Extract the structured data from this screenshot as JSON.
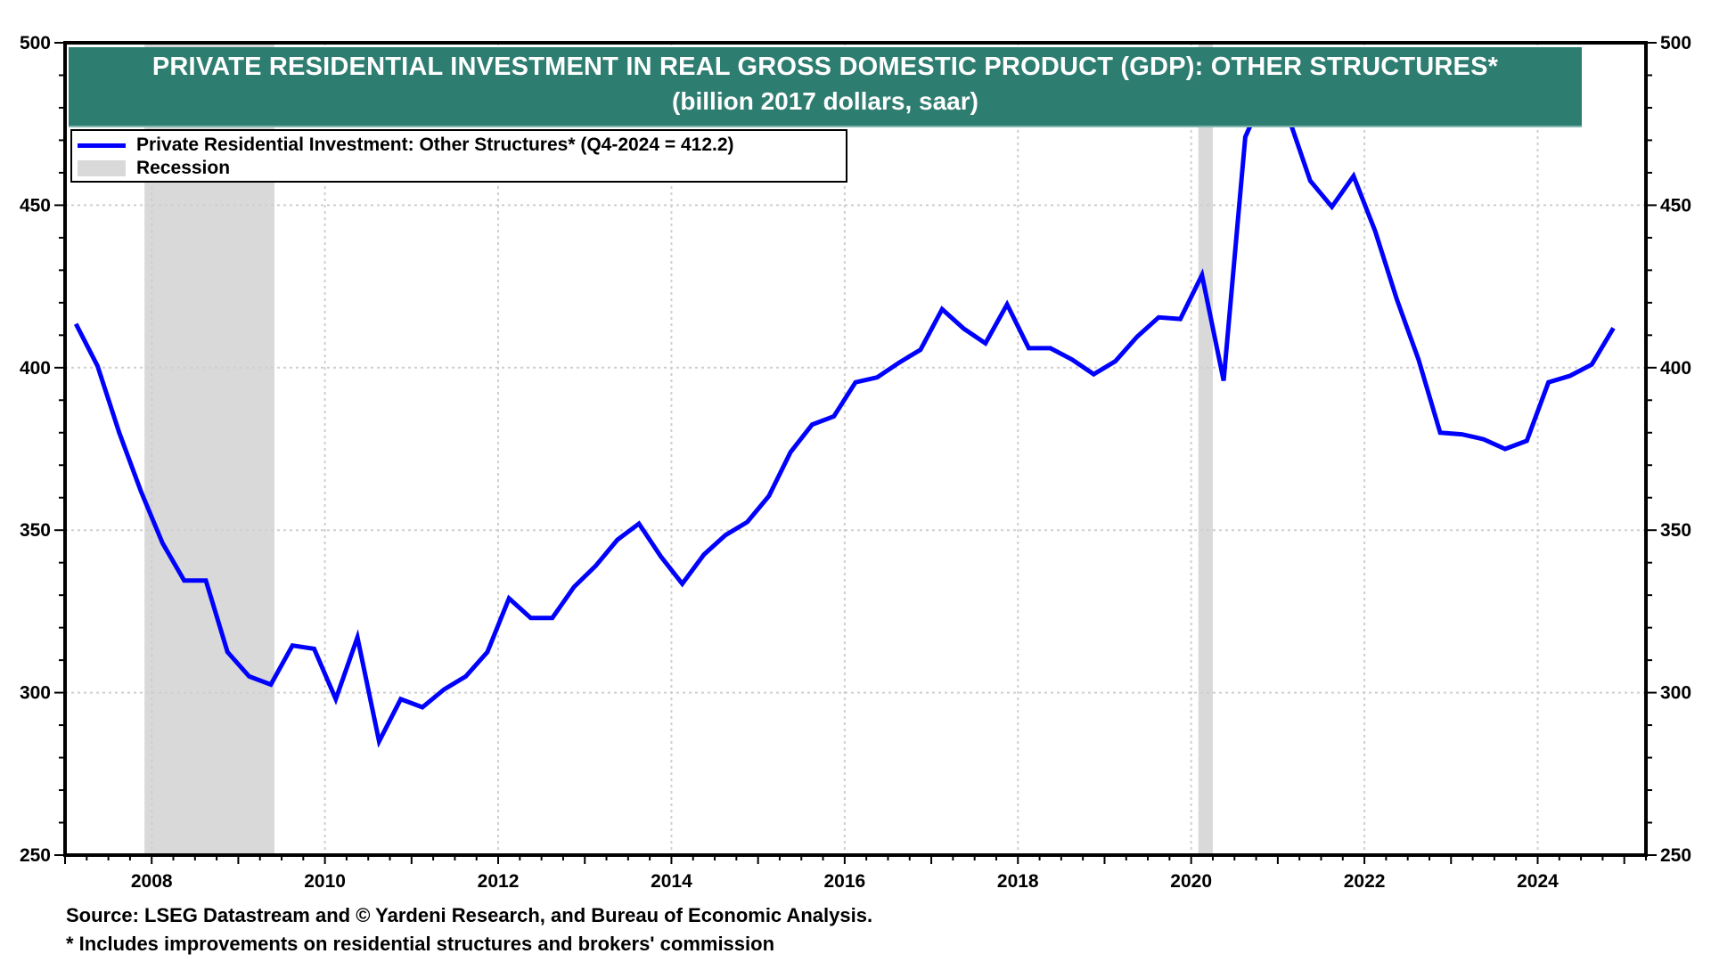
{
  "chart_data": {
    "type": "line",
    "title": "PRIVATE RESIDENTIAL INVESTMENT IN REAL GROSS DOMESTIC PRODUCT (GDP): OTHER STRUCTURES*",
    "subtitle": "(billion 2017 dollars, saar)",
    "xlabel": "",
    "ylabel": "",
    "xlim": [
      2007.0,
      2025.25
    ],
    "ylim": [
      250,
      500
    ],
    "y_ticks": [
      250,
      300,
      350,
      400,
      450,
      500
    ],
    "y_tick_labels": [
      "250",
      "300",
      "350",
      "400",
      "450",
      "500"
    ],
    "x_ticks": [
      2008,
      2010,
      2012,
      2014,
      2016,
      2018,
      2020,
      2022,
      2024
    ],
    "x_tick_labels": [
      "2008",
      "2010",
      "2012",
      "2014",
      "2016",
      "2018",
      "2020",
      "2022",
      "2024"
    ],
    "grid": true,
    "legend_position": "top-left",
    "legend": [
      {
        "label": "Private Residential Investment: Other Structures* (Q4-2024 = 412.2)",
        "type": "line",
        "color": "#0000ff"
      },
      {
        "label": "Recession",
        "type": "area",
        "color": "#d9d9d9"
      }
    ],
    "recessions": [
      {
        "start": 2007.917,
        "end": 2009.417
      },
      {
        "start": 2020.083,
        "end": 2020.25
      }
    ],
    "series": [
      {
        "name": "Private Residential Investment: Other Structures*",
        "color": "#0000ff",
        "frequency": "quarterly",
        "start": "2007Q1",
        "values": [
          413.5,
          400.5,
          380,
          362,
          346,
          334.5,
          334.5,
          312.5,
          305,
          302.5,
          314.5,
          313.5,
          298,
          317,
          285,
          298,
          295.5,
          301,
          305,
          312.5,
          329,
          323,
          323,
          332.5,
          339,
          347,
          352,
          342,
          333.5,
          342.5,
          348.5,
          352.5,
          360.5,
          374,
          382.5,
          385,
          395.5,
          397,
          401.5,
          405.5,
          418,
          412,
          407.5,
          419.5,
          406,
          406,
          402.5,
          398,
          402,
          409.5,
          415.5,
          415,
          428.5,
          396,
          471,
          486,
          477,
          457.5,
          449.5,
          459,
          442,
          421,
          402.5,
          380,
          379.5,
          378,
          375,
          377.5,
          395.5,
          397.5,
          401,
          412.2
        ]
      }
    ],
    "annotations": []
  },
  "source_note": "Source: LSEG Datastream and © Yardeni Research, and Bureau of Economic Analysis.",
  "footnote": "* Includes improvements on residential structures and brokers' commission"
}
